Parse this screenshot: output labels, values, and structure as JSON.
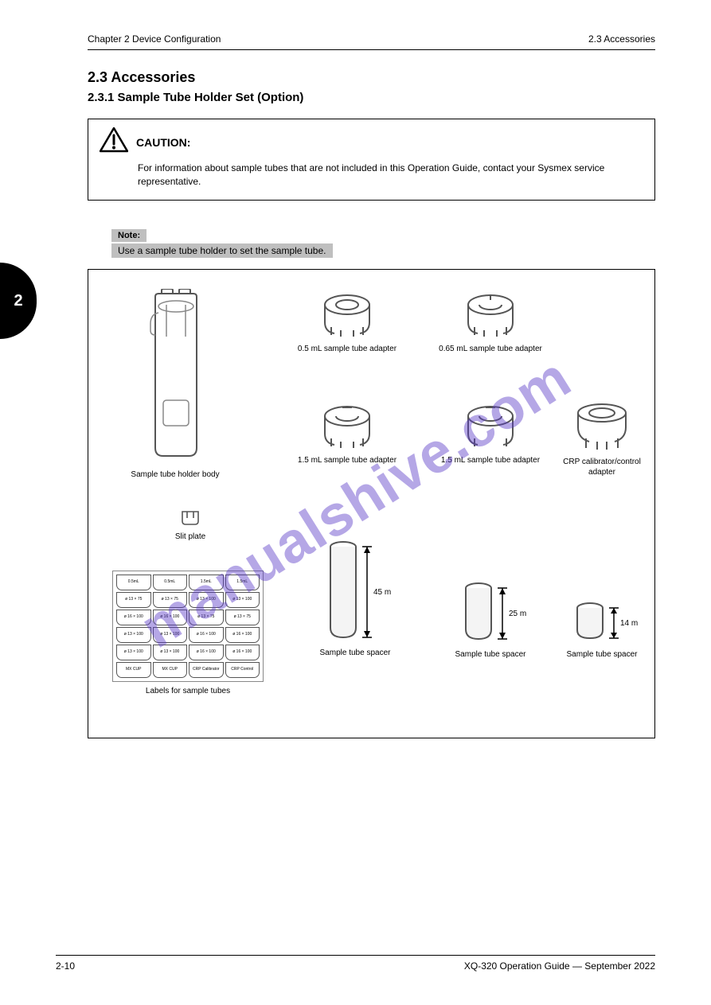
{
  "header": {
    "left": "Chapter 2  Device Configuration",
    "right": "2.3  Accessories"
  },
  "title": "2.3 Accessories",
  "subtitle": "2.3.1 Sample Tube Holder Set (Option)",
  "caution": {
    "label": "CAUTION:",
    "body": "For information about sample tubes that are not included in this Operation Guide, contact your Sysmex service representative."
  },
  "side_tab": "2",
  "note": {
    "label": "Note:",
    "text": "Use a sample tube holder to set the sample tube."
  },
  "figure": {
    "items": {
      "holder_body": {
        "label": "Sample tube holder body"
      },
      "adapter_05": {
        "label": "0.5 mL sample tube adapter"
      },
      "adapter_065": {
        "label": "0.65 mL sample tube adapter"
      },
      "adapter_15a": {
        "label": "1.5 mL sample tube adapter"
      },
      "adapter_15b": {
        "label": "1.5 mL sample tube adapter"
      },
      "adapter_crp": {
        "label": "CRP calibrator/control\nadapter"
      },
      "slit_plate": {
        "label": "Slit plate"
      },
      "spacer_45": {
        "label": "Sample tube spacer",
        "dim": "45 mm"
      },
      "spacer_25": {
        "label": "Sample tube spacer",
        "dim": "25 mm"
      },
      "spacer_14": {
        "label": "Sample tube spacer",
        "dim": "14 mm"
      },
      "labels": {
        "label": "Labels for sample tubes"
      },
      "sheet": [
        "0.5mL",
        "0.5mL",
        "1.5mL",
        "1.5mL",
        "ø 13 × 75",
        "ø 13 × 75",
        "ø 13 × 100",
        "ø 13 × 100",
        "ø 16 × 100",
        "ø 16 × 100",
        "ø 13 × 75",
        "ø 13 × 75",
        "ø 13 × 100",
        "ø 13 × 100",
        "ø 16 × 100",
        "ø 16 × 100",
        "ø 13 × 100",
        "ø 13 × 100",
        "ø 16 × 100",
        "ø 16 × 100",
        "MX CUP",
        "MX CUP",
        "CRP Calibrator",
        "CRP Control"
      ]
    }
  },
  "footer": {
    "left": "2-10",
    "right": "XQ-320 Operation Guide — September 2022"
  },
  "watermark": "manualshive.com",
  "colors": {
    "text": "#000000",
    "gray": "#bfbfbf",
    "wm": "rgba(90,60,200,0.45)"
  }
}
